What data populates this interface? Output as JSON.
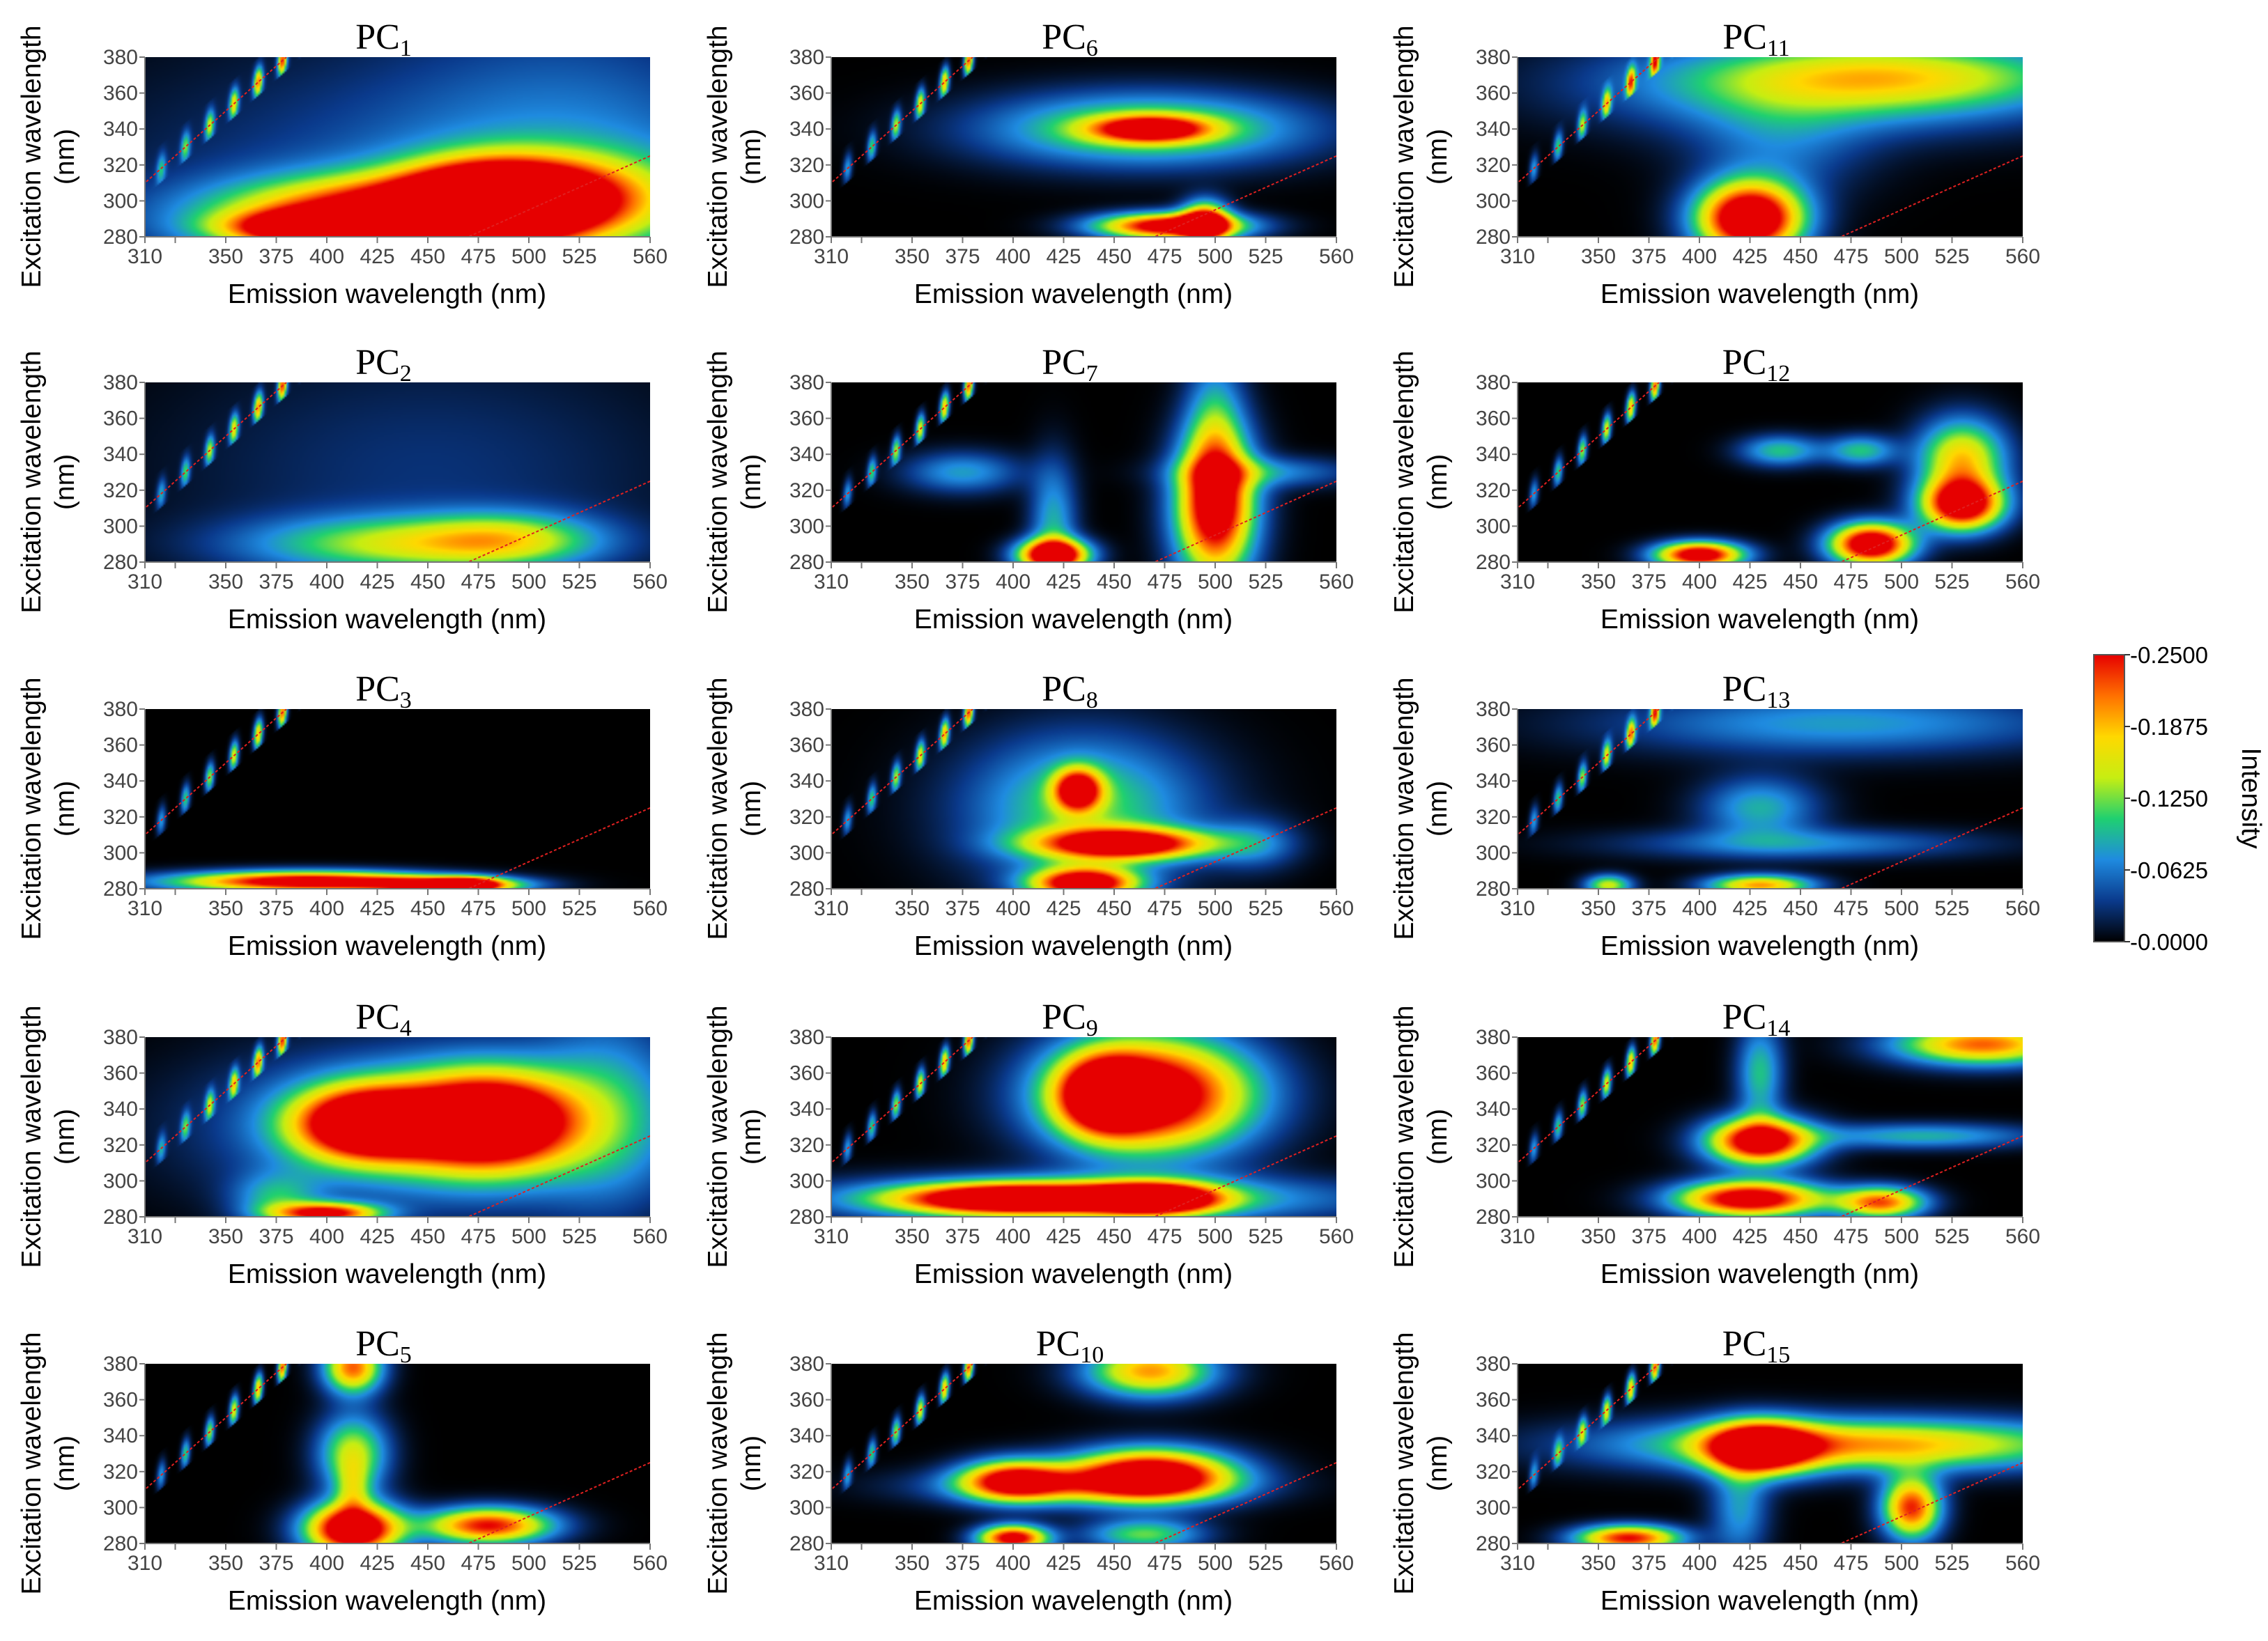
{
  "figure": {
    "panel_xlabel": "Emission wavelength (nm)",
    "panel_ylabel_line1": "Excitation wavelength",
    "panel_ylabel_line2": "(nm)",
    "x_ticks": [
      "310",
      "350",
      "375",
      "400",
      "425",
      "450",
      "475",
      "500",
      "525",
      "560"
    ],
    "y_ticks": [
      "380",
      "360",
      "340",
      "320",
      "300",
      "280"
    ],
    "colorbar": {
      "label": "Intensity",
      "ticks": [
        "-0.2500",
        "-0.1875",
        "-0.1250",
        "-0.0625",
        "-0.0000"
      ],
      "colors": [
        "#000000",
        "#0a3a8c",
        "#1f8be0",
        "#1fd070",
        "#c6ee12",
        "#ffd800",
        "#ff7000",
        "#e60000"
      ]
    }
  },
  "chart_data": {
    "type": "heatmap",
    "xlabel": "Emission wavelength (nm)",
    "ylabel": "Excitation wavelength (nm)",
    "xlim": [
      310,
      560
    ],
    "ylim": [
      280,
      380
    ],
    "colorbar_range": [
      0.0,
      0.25
    ],
    "panels": [
      {
        "title": "PC",
        "sub": "1",
        "blobs": [
          [
            440,
            292,
            60,
            14,
            0.3
          ],
          [
            480,
            300,
            28,
            14,
            0.26
          ],
          [
            510,
            305,
            40,
            15,
            0.17
          ],
          [
            400,
            285,
            30,
            6,
            0.28
          ],
          [
            470,
            305,
            120,
            55,
            0.05
          ],
          [
            520,
            330,
            60,
            60,
            0.035
          ]
        ]
      },
      {
        "title": "PC",
        "sub": "2",
        "blobs": [
          [
            440,
            290,
            55,
            11,
            0.13
          ],
          [
            490,
            293,
            30,
            10,
            0.09
          ],
          [
            450,
            330,
            90,
            50,
            0.03
          ]
        ]
      },
      {
        "title": "PC",
        "sub": "3",
        "blobs": [
          [
            390,
            284,
            45,
            4,
            0.3
          ],
          [
            460,
            282,
            25,
            3,
            0.25
          ],
          [
            470,
            282,
            10,
            3,
            0.18
          ]
        ]
      },
      {
        "title": "PC",
        "sub": "4",
        "blobs": [
          [
            420,
            332,
            25,
            14,
            0.32
          ],
          [
            480,
            333,
            28,
            18,
            0.34
          ],
          [
            450,
            330,
            70,
            30,
            0.1
          ],
          [
            400,
            282,
            18,
            4,
            0.25
          ],
          [
            375,
            290,
            15,
            10,
            0.08
          ],
          [
            540,
            340,
            25,
            40,
            0.07
          ]
        ]
      },
      {
        "title": "PC",
        "sub": "5",
        "blobs": [
          [
            413,
            288,
            16,
            10,
            0.34
          ],
          [
            480,
            290,
            22,
            7,
            0.25
          ],
          [
            413,
            330,
            12,
            15,
            0.15
          ],
          [
            413,
            378,
            10,
            10,
            0.22
          ],
          [
            413,
            310,
            6,
            10,
            0.08
          ]
        ]
      },
      {
        "title": "PC",
        "sub": "6",
        "blobs": [
          [
            466,
            340,
            55,
            14,
            0.14
          ],
          [
            468,
            340,
            20,
            5,
            0.22
          ],
          [
            478,
            286,
            25,
            5,
            0.3
          ],
          [
            495,
            288,
            8,
            8,
            0.24
          ]
        ]
      },
      {
        "title": "PC",
        "sub": "7",
        "blobs": [
          [
            420,
            284,
            12,
            6,
            0.32
          ],
          [
            420,
            300,
            8,
            25,
            0.09
          ],
          [
            500,
            310,
            14,
            28,
            0.26
          ],
          [
            500,
            345,
            10,
            35,
            0.1
          ],
          [
            525,
            330,
            30,
            6,
            0.07
          ],
          [
            375,
            330,
            20,
            8,
            0.08
          ]
        ]
      },
      {
        "title": "PC",
        "sub": "8",
        "blobs": [
          [
            435,
            325,
            40,
            28,
            0.12
          ],
          [
            432,
            335,
            8,
            8,
            0.25
          ],
          [
            455,
            305,
            30,
            6,
            0.28
          ],
          [
            435,
            283,
            18,
            6,
            0.3
          ],
          [
            520,
            305,
            15,
            10,
            0.06
          ]
        ]
      },
      {
        "title": "PC",
        "sub": "9",
        "blobs": [
          [
            468,
            348,
            35,
            22,
            0.32
          ],
          [
            445,
            348,
            15,
            14,
            0.22
          ],
          [
            400,
            290,
            40,
            6,
            0.3
          ],
          [
            470,
            290,
            22,
            6,
            0.3
          ],
          [
            440,
            290,
            90,
            9,
            0.12
          ]
        ]
      },
      {
        "title": "PC",
        "sub": "10",
        "blobs": [
          [
            468,
            318,
            28,
            10,
            0.32
          ],
          [
            400,
            315,
            18,
            8,
            0.24
          ],
          [
            430,
            312,
            50,
            7,
            0.1
          ],
          [
            400,
            283,
            12,
            5,
            0.28
          ],
          [
            468,
            376,
            22,
            10,
            0.2
          ],
          [
            465,
            285,
            20,
            6,
            0.12
          ]
        ]
      },
      {
        "title": "PC",
        "sub": "11",
        "blobs": [
          [
            425,
            290,
            18,
            14,
            0.34
          ],
          [
            470,
            365,
            80,
            18,
            0.12
          ],
          [
            500,
            370,
            60,
            12,
            0.08
          ],
          [
            440,
            330,
            30,
            20,
            0.05
          ]
        ]
      },
      {
        "title": "PC",
        "sub": "12",
        "blobs": [
          [
            400,
            284,
            15,
            5,
            0.3
          ],
          [
            485,
            290,
            14,
            8,
            0.32
          ],
          [
            530,
            312,
            14,
            10,
            0.3
          ],
          [
            530,
            338,
            15,
            15,
            0.18
          ],
          [
            440,
            342,
            14,
            6,
            0.1
          ],
          [
            480,
            342,
            12,
            6,
            0.1
          ]
        ]
      },
      {
        "title": "PC",
        "sub": "13",
        "blobs": [
          [
            470,
            372,
            80,
            12,
            0.08
          ],
          [
            430,
            325,
            20,
            12,
            0.09
          ],
          [
            450,
            305,
            60,
            6,
            0.07
          ],
          [
            430,
            282,
            18,
            4,
            0.2
          ],
          [
            355,
            282,
            8,
            4,
            0.15
          ]
        ]
      },
      {
        "title": "PC",
        "sub": "14",
        "blobs": [
          [
            430,
            322,
            18,
            9,
            0.3
          ],
          [
            425,
            290,
            25,
            7,
            0.3
          ],
          [
            540,
            376,
            30,
            8,
            0.22
          ],
          [
            490,
            288,
            15,
            6,
            0.22
          ],
          [
            510,
            325,
            40,
            5,
            0.09
          ],
          [
            430,
            360,
            8,
            20,
            0.1
          ]
        ]
      },
      {
        "title": "PC",
        "sub": "15",
        "blobs": [
          [
            480,
            335,
            80,
            10,
            0.2
          ],
          [
            430,
            333,
            18,
            10,
            0.28
          ],
          [
            505,
            300,
            10,
            12,
            0.24
          ],
          [
            365,
            283,
            18,
            5,
            0.25
          ],
          [
            420,
            300,
            10,
            20,
            0.08
          ]
        ]
      }
    ]
  }
}
